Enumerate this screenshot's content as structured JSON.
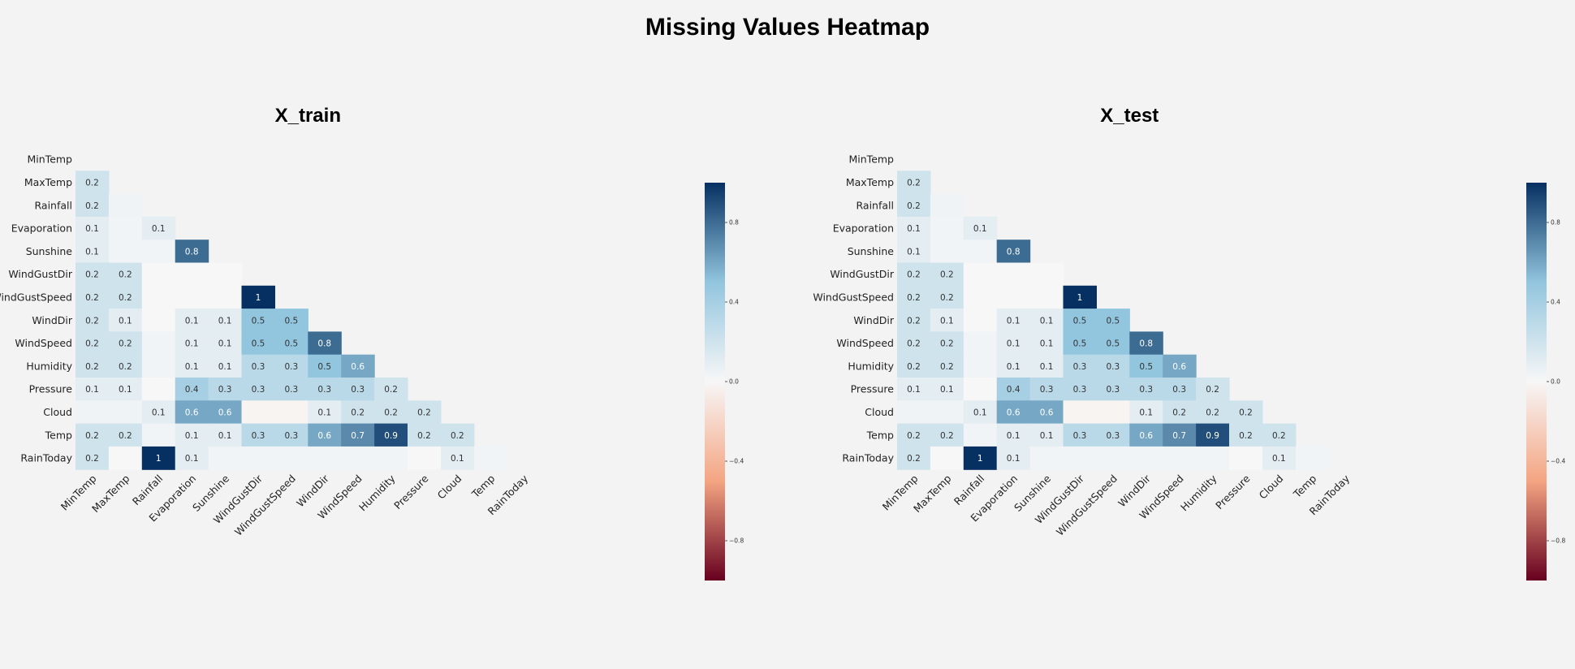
{
  "figure": {
    "title": "Missing Values Heatmap"
  },
  "colors": {
    "background": "#f3f3f3",
    "negative_dark": "#67001f",
    "negative_mid": "#f4a582",
    "neutral": "#f7f7f7",
    "positive_mid": "#92c5de",
    "positive_dark": "#053061"
  },
  "chart_data": [
    {
      "type": "heatmap",
      "title": "X_train",
      "row_labels": [
        "MinTemp",
        "MaxTemp",
        "Rainfall",
        "Evaporation",
        "Sunshine",
        "WindGustDir",
        "WindGustSpeed",
        "WindDir",
        "WindSpeed",
        "Humidity",
        "Pressure",
        "Cloud",
        "Temp",
        "RainToday"
      ],
      "col_labels": [
        "MinTemp",
        "MaxTemp",
        "Rainfall",
        "Evaporation",
        "Sunshine",
        "WindGustDir",
        "WindGustSpeed",
        "WindDir",
        "WindSpeed",
        "Humidity",
        "Pressure",
        "Cloud",
        "Temp",
        "RainToday"
      ],
      "mask": "upper triangle including diagonal",
      "colormap": "RdBu",
      "vmin": -1,
      "vmax": 1,
      "colorbar_ticks": [
        "0.8",
        "0.4",
        "0.0",
        "−0.4",
        "−0.8"
      ],
      "colorbar_tick_values": [
        0.8,
        0.4,
        0.0,
        -0.4,
        -0.8
      ],
      "values": [
        [],
        [
          0.2
        ],
        [
          0.2,
          0.04
        ],
        [
          0.1,
          0.03,
          0.1
        ],
        [
          0.1,
          0.03,
          0.03,
          0.8
        ],
        [
          0.2,
          0.2,
          0.0,
          0.0,
          0.0
        ],
        [
          0.2,
          0.2,
          0.0,
          0.0,
          0.0,
          1.0
        ],
        [
          0.2,
          0.1,
          0.0,
          0.1,
          0.1,
          0.5,
          0.5
        ],
        [
          0.2,
          0.2,
          0.03,
          0.1,
          0.1,
          0.5,
          0.5,
          0.8
        ],
        [
          0.2,
          0.2,
          0.03,
          0.1,
          0.1,
          0.3,
          0.3,
          0.5,
          0.6
        ],
        [
          0.1,
          0.1,
          0.0,
          0.4,
          0.3,
          0.3,
          0.3,
          0.3,
          0.3,
          0.2
        ],
        [
          0.04,
          0.04,
          0.1,
          0.6,
          0.6,
          -0.02,
          -0.02,
          0.1,
          0.2,
          0.2,
          0.2
        ],
        [
          0.2,
          0.2,
          0.03,
          0.1,
          0.1,
          0.3,
          0.3,
          0.6,
          0.7,
          0.9,
          0.2,
          0.2
        ],
        [
          0.2,
          0.0,
          1.0,
          0.1,
          0.03,
          0.03,
          0.03,
          0.03,
          0.03,
          0.03,
          0.0,
          0.1,
          0.03
        ]
      ],
      "labels": [
        [],
        [
          "0.2"
        ],
        [
          "0.2",
          ""
        ],
        [
          "0.1",
          "",
          "0.1"
        ],
        [
          "0.1",
          "",
          "",
          "0.8"
        ],
        [
          "0.2",
          "0.2",
          "",
          "",
          ""
        ],
        [
          "0.2",
          "0.2",
          "",
          "",
          "",
          "1"
        ],
        [
          "0.2",
          "0.1",
          "",
          "0.1",
          "0.1",
          "0.5",
          "0.5"
        ],
        [
          "0.2",
          "0.2",
          "",
          "0.1",
          "0.1",
          "0.5",
          "0.5",
          "0.8"
        ],
        [
          "0.2",
          "0.2",
          "",
          "0.1",
          "0.1",
          "0.3",
          "0.3",
          "0.5",
          "0.6"
        ],
        [
          "0.1",
          "0.1",
          "",
          "0.4",
          "0.3",
          "0.3",
          "0.3",
          "0.3",
          "0.3",
          "0.2"
        ],
        [
          "",
          "",
          "0.1",
          "0.6",
          "0.6",
          "",
          "",
          "0.1",
          "0.2",
          "0.2",
          "0.2"
        ],
        [
          "0.2",
          "0.2",
          "",
          "0.1",
          "0.1",
          "0.3",
          "0.3",
          "0.6",
          "0.7",
          "0.9",
          "0.2",
          "0.2"
        ],
        [
          "0.2",
          "",
          "1",
          "0.1",
          "",
          "",
          "",
          "",
          "",
          "",
          "",
          "0.1",
          ""
        ]
      ]
    },
    {
      "type": "heatmap",
      "title": "X_test",
      "row_labels": [
        "MinTemp",
        "MaxTemp",
        "Rainfall",
        "Evaporation",
        "Sunshine",
        "WindGustDir",
        "WindGustSpeed",
        "WindDir",
        "WindSpeed",
        "Humidity",
        "Pressure",
        "Cloud",
        "Temp",
        "RainToday"
      ],
      "col_labels": [
        "MinTemp",
        "MaxTemp",
        "Rainfall",
        "Evaporation",
        "Sunshine",
        "WindGustDir",
        "WindGustSpeed",
        "WindDir",
        "WindSpeed",
        "Humidity",
        "Pressure",
        "Cloud",
        "Temp",
        "RainToday"
      ],
      "mask": "upper triangle including diagonal",
      "colormap": "RdBu",
      "vmin": -1,
      "vmax": 1,
      "colorbar_ticks": [
        "0.8",
        "0.4",
        "0.0",
        "−0.4",
        "−0.8"
      ],
      "colorbar_tick_values": [
        0.8,
        0.4,
        0.0,
        -0.4,
        -0.8
      ],
      "values": [
        [],
        [
          0.2
        ],
        [
          0.2,
          0.04
        ],
        [
          0.1,
          0.03,
          0.1
        ],
        [
          0.1,
          0.03,
          0.03,
          0.8
        ],
        [
          0.2,
          0.2,
          0.0,
          0.0,
          0.0
        ],
        [
          0.2,
          0.2,
          0.0,
          0.0,
          0.0,
          1.0
        ],
        [
          0.2,
          0.1,
          0.0,
          0.1,
          0.1,
          0.5,
          0.5
        ],
        [
          0.2,
          0.2,
          0.03,
          0.1,
          0.1,
          0.5,
          0.5,
          0.8
        ],
        [
          0.2,
          0.2,
          0.03,
          0.1,
          0.1,
          0.3,
          0.3,
          0.5,
          0.6
        ],
        [
          0.1,
          0.1,
          0.0,
          0.4,
          0.3,
          0.3,
          0.3,
          0.3,
          0.3,
          0.2
        ],
        [
          0.04,
          0.04,
          0.1,
          0.6,
          0.6,
          -0.02,
          -0.02,
          0.1,
          0.2,
          0.2,
          0.2
        ],
        [
          0.2,
          0.2,
          0.03,
          0.1,
          0.1,
          0.3,
          0.3,
          0.6,
          0.7,
          0.9,
          0.2,
          0.2
        ],
        [
          0.2,
          0.0,
          1.0,
          0.1,
          0.03,
          0.03,
          0.03,
          0.03,
          0.03,
          0.03,
          0.0,
          0.1,
          0.03
        ]
      ],
      "labels": [
        [],
        [
          "0.2"
        ],
        [
          "0.2",
          ""
        ],
        [
          "0.1",
          "",
          "0.1"
        ],
        [
          "0.1",
          "",
          "",
          "0.8"
        ],
        [
          "0.2",
          "0.2",
          "",
          "",
          ""
        ],
        [
          "0.2",
          "0.2",
          "",
          "",
          "",
          "1"
        ],
        [
          "0.2",
          "0.1",
          "",
          "0.1",
          "0.1",
          "0.5",
          "0.5"
        ],
        [
          "0.2",
          "0.2",
          "",
          "0.1",
          "0.1",
          "0.5",
          "0.5",
          "0.8"
        ],
        [
          "0.2",
          "0.2",
          "",
          "0.1",
          "0.1",
          "0.3",
          "0.3",
          "0.5",
          "0.6"
        ],
        [
          "0.1",
          "0.1",
          "",
          "0.4",
          "0.3",
          "0.3",
          "0.3",
          "0.3",
          "0.3",
          "0.2"
        ],
        [
          "",
          "",
          "0.1",
          "0.6",
          "0.6",
          "",
          "",
          "0.1",
          "0.2",
          "0.2",
          "0.2"
        ],
        [
          "0.2",
          "0.2",
          "",
          "0.1",
          "0.1",
          "0.3",
          "0.3",
          "0.6",
          "0.7",
          "0.9",
          "0.2",
          "0.2"
        ],
        [
          "0.2",
          "",
          "1",
          "0.1",
          "",
          "",
          "",
          "",
          "",
          "",
          "",
          "0.1",
          ""
        ]
      ]
    }
  ]
}
